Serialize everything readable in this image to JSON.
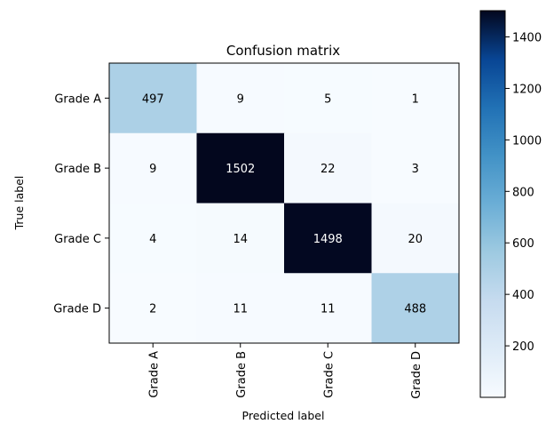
{
  "chart_data": {
    "type": "heatmap",
    "title": "Confusion matrix",
    "xlabel": "Predicted label",
    "ylabel": "True label",
    "row_labels": [
      "Grade A",
      "Grade B",
      "Grade C",
      "Grade D"
    ],
    "col_labels": [
      "Grade A",
      "Grade B",
      "Grade C",
      "Grade D"
    ],
    "values": [
      [
        497,
        9,
        5,
        1
      ],
      [
        9,
        1502,
        22,
        3
      ],
      [
        4,
        14,
        1498,
        20
      ],
      [
        2,
        11,
        11,
        488
      ]
    ],
    "colormap": "Blues",
    "colorbar": {
      "range": [
        0,
        1502
      ],
      "ticks": [
        "200",
        "400",
        "600",
        "800",
        "1000",
        "1200",
        "1400"
      ]
    },
    "grid": false,
    "legend": "colorbar-right"
  }
}
